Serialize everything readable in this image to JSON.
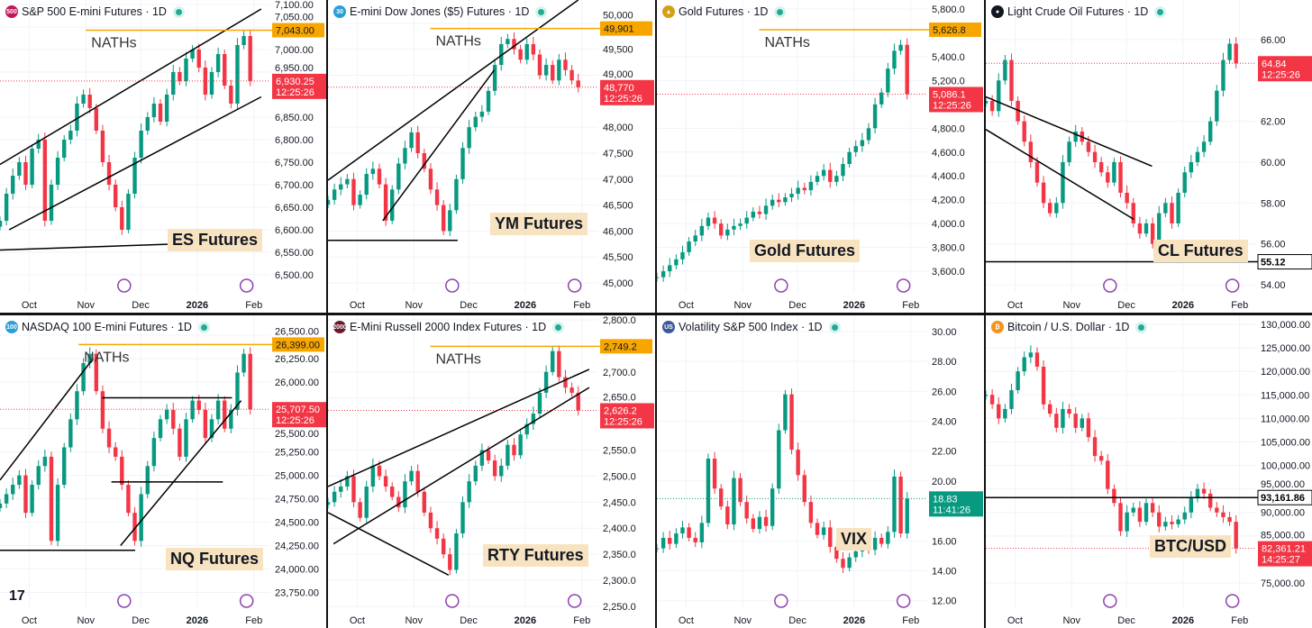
{
  "colors": {
    "up": "#089981",
    "down": "#f23645",
    "nath": "#f7a600",
    "grid": "#f0f3fa",
    "text": "#131722"
  },
  "chart_data": [
    {
      "id": "es",
      "type": "candlestick",
      "title": "S&P 500 E-mini Futures · 1D",
      "logo_text": "500",
      "logo_color": "#c2185b",
      "annotation": "ES Futures",
      "nath_text": "NATHs",
      "nath_price": 7043,
      "nath_label": "7,043.00",
      "nath_from": "2025-11-01",
      "last_price": 6930.25,
      "last_label": "6,930.25",
      "countdown": "12:25:26",
      "last_dir": "down",
      "ylim": [
        6460,
        7110
      ],
      "xlim": [
        "2025-09-15",
        "2026-02-10"
      ],
      "first": "2025-09-15",
      "last": "2026-01-30",
      "xticks": [
        {
          "label": "Oct",
          "date": "2025-10-01"
        },
        {
          "label": "Nov",
          "date": "2025-11-01"
        },
        {
          "label": "Dec",
          "date": "2025-12-01"
        },
        {
          "label": "2026",
          "date": "2026-01-01"
        },
        {
          "label": "Feb",
          "date": "2026-02-01"
        }
      ],
      "yticks": [
        "7,100.00",
        "7,050.00",
        "7,000.00",
        "6,950.00",
        "6,850.00",
        "6,800.00",
        "6,750.00",
        "6,700.00",
        "6,650.00",
        "6,600.00",
        "6,550.00",
        "6,500.00"
      ],
      "closes": [
        6620,
        6680,
        6720,
        6750,
        6700,
        6780,
        6800,
        6620,
        6700,
        6760,
        6800,
        6820,
        6880,
        6900,
        6870,
        6820,
        6750,
        6700,
        6650,
        6600,
        6680,
        6760,
        6820,
        6850,
        6880,
        6840,
        6900,
        6950,
        6930,
        6980,
        7000,
        6960,
        6900,
        6950,
        6990,
        6920,
        6880,
        7010,
        7030,
        6930.25
      ],
      "trendlines": [
        {
          "from": [
            "2025-09-15",
            6745
          ],
          "to": [
            "2026-02-05",
            7090
          ]
        },
        {
          "from": [
            "2025-09-20",
            6600
          ],
          "to": [
            "2026-02-05",
            6895
          ]
        },
        {
          "from": [
            "2025-09-15",
            6555
          ],
          "to": [
            "2026-02-05",
            6575
          ]
        }
      ]
    },
    {
      "id": "ym",
      "type": "candlestick",
      "title": "E-mini Dow Jones ($5) Futures · 1D",
      "logo_text": "30",
      "logo_color": "#2a9fd6",
      "annotation": "YM Futures",
      "nath_text": "NATHs",
      "nath_price": 49901,
      "nath_label": "49,901",
      "nath_from": "2025-11-10",
      "last_price": 48770,
      "last_label": "48,770",
      "countdown": "12:25:26",
      "last_dir": "down",
      "ylim": [
        44810,
        50450
      ],
      "xlim": [
        "2025-09-15",
        "2026-02-10"
      ],
      "first": "2025-09-15",
      "last": "2026-01-30",
      "xticks": [
        {
          "label": "Oct",
          "date": "2025-10-01"
        },
        {
          "label": "Nov",
          "date": "2025-11-01"
        },
        {
          "label": "Dec",
          "date": "2025-12-01"
        },
        {
          "label": "2026",
          "date": "2026-01-01"
        },
        {
          "label": "Feb",
          "date": "2026-02-01"
        }
      ],
      "yticks": [
        "50,000",
        "49,500",
        "49,000",
        "48,000",
        "47,500",
        "47,000",
        "46,500",
        "46,000",
        "45,500",
        "45,000"
      ],
      "closes": [
        46600,
        46800,
        46900,
        47000,
        46500,
        46700,
        47100,
        47200,
        46900,
        46200,
        46800,
        47300,
        47600,
        47900,
        47500,
        47200,
        46800,
        46500,
        46000,
        46400,
        47000,
        47600,
        48000,
        48200,
        48300,
        48700,
        49200,
        49600,
        49700,
        49500,
        49300,
        49600,
        49400,
        49000,
        49200,
        48900,
        49300,
        49100,
        48900,
        48770
      ],
      "trendlines": [
        {
          "from": [
            "2025-09-15",
            46980
          ],
          "to": [
            "2026-01-30",
            50450
          ]
        },
        {
          "from": [
            "2025-10-15",
            46200
          ],
          "to": [
            "2025-12-15",
            49100
          ]
        },
        {
          "from": [
            "2025-09-15",
            45820
          ],
          "to": [
            "2025-11-25",
            45820
          ]
        }
      ]
    },
    {
      "id": "gc",
      "type": "candlestick",
      "title": "Gold Futures · 1D",
      "logo_text": "▲",
      "logo_color": "#d4a017",
      "annotation": "Gold Futures",
      "nath_text": "NATHs",
      "nath_price": 5626.8,
      "nath_label": "5,626.8",
      "nath_from": "2025-11-10",
      "last_price": 5086.1,
      "last_label": "5,086.1",
      "countdown": "12:25:26",
      "last_dir": "down",
      "ylim": [
        3419,
        5876
      ],
      "xlim": [
        "2025-09-15",
        "2026-02-10"
      ],
      "first": "2025-09-15",
      "last": "2026-01-30",
      "xticks": [
        {
          "label": "Oct",
          "date": "2025-10-01"
        },
        {
          "label": "Nov",
          "date": "2025-11-01"
        },
        {
          "label": "Dec",
          "date": "2025-12-01"
        },
        {
          "label": "2026",
          "date": "2026-01-01"
        },
        {
          "label": "Feb",
          "date": "2026-02-01"
        }
      ],
      "yticks": [
        "5,800.0",
        "5,400.0",
        "5,200.0",
        "4,800.0",
        "4,600.0",
        "4,400.0",
        "4,200.0",
        "4,000.0",
        "3,800.0",
        "3,600.0"
      ],
      "closes": [
        3550,
        3600,
        3650,
        3700,
        3760,
        3850,
        3900,
        3980,
        4050,
        4000,
        3900,
        3950,
        3980,
        4000,
        4050,
        4100,
        4080,
        4150,
        4200,
        4180,
        4220,
        4250,
        4300,
        4280,
        4350,
        4400,
        4450,
        4350,
        4400,
        4500,
        4600,
        4650,
        4700,
        4800,
        5000,
        5100,
        5300,
        5450,
        5500,
        5086.1
      ],
      "trendlines": []
    },
    {
      "id": "cl",
      "type": "candlestick",
      "title": "Light Crude Oil Futures · 1D",
      "logo_text": "●",
      "logo_color": "#131722",
      "annotation": "CL Futures",
      "support_label": "55.12",
      "support_price": 55.12,
      "last_price": 64.84,
      "last_label": "64.84",
      "countdown": "12:25:26",
      "last_dir": "down",
      "ylim": [
        53.6,
        67.94
      ],
      "xlim": [
        "2025-09-15",
        "2026-02-10"
      ],
      "first": "2025-09-15",
      "last": "2026-01-30",
      "xticks": [
        {
          "label": "Oct",
          "date": "2025-10-01"
        },
        {
          "label": "Nov",
          "date": "2025-11-01"
        },
        {
          "label": "Dec",
          "date": "2025-12-01"
        },
        {
          "label": "2026",
          "date": "2026-01-01"
        },
        {
          "label": "Feb",
          "date": "2026-02-01"
        }
      ],
      "yticks": [
        "66.00",
        "62.00",
        "60.00",
        "58.00",
        "56.00",
        "54.00"
      ],
      "closes": [
        63,
        62.5,
        64,
        65,
        63,
        62,
        61,
        60,
        59,
        58,
        57.5,
        58,
        60,
        61,
        61.5,
        61,
        60.5,
        60,
        59.5,
        59,
        60,
        58.5,
        58,
        57,
        56.5,
        57,
        56,
        57.5,
        58,
        57,
        58.5,
        59.5,
        60,
        60.5,
        61,
        62,
        63.5,
        65,
        65.8,
        64.84
      ],
      "trendlines": [
        {
          "from": [
            "2025-09-15",
            63.2
          ],
          "to": [
            "2025-12-15",
            59.8
          ]
        },
        {
          "from": [
            "2025-09-15",
            61.6
          ],
          "to": [
            "2025-12-05",
            57.2
          ]
        }
      ]
    },
    {
      "id": "nq",
      "type": "candlestick",
      "title": "NASDAQ 100 E-mini Futures · 1D",
      "logo_text": "100",
      "logo_color": "#2a9fd6",
      "annotation": "NQ Futures",
      "nath_text": "NATHs",
      "nath_price": 26399,
      "nath_label": "26,399.00",
      "nath_from": "2025-10-28",
      "last_price": 25707.5,
      "last_label": "25,707.50",
      "countdown": "12:25:26",
      "last_dir": "down",
      "ylim": [
        23581,
        26711
      ],
      "xlim": [
        "2025-09-15",
        "2026-02-10"
      ],
      "first": "2025-09-15",
      "last": "2026-01-30",
      "xticks": [
        {
          "label": "Oct",
          "date": "2025-10-01"
        },
        {
          "label": "Nov",
          "date": "2025-11-01"
        },
        {
          "label": "Dec",
          "date": "2025-12-01"
        },
        {
          "label": "2026",
          "date": "2026-01-01"
        },
        {
          "label": "Feb",
          "date": "2026-02-01"
        }
      ],
      "yticks": [
        "26,500.00",
        "26,250.00",
        "26,000.00",
        "25,500.00",
        "25,250.00",
        "25,000.00",
        "24,750.00",
        "24,500.00",
        "24,250.00",
        "24,000.00",
        "23,750.00"
      ],
      "closes": [
        24700,
        24800,
        24900,
        25000,
        24600,
        24900,
        25100,
        25200,
        24300,
        24900,
        25300,
        25600,
        25900,
        26200,
        26300,
        25900,
        25500,
        25300,
        25200,
        24900,
        24600,
        24300,
        24800,
        25100,
        25400,
        25600,
        25700,
        25500,
        25200,
        25600,
        25800,
        25700,
        25400,
        25600,
        25800,
        25500,
        25700,
        26100,
        26300,
        25707.5
      ],
      "trendlines": [
        {
          "from": [
            "2025-09-15",
            24950
          ],
          "to": [
            "2025-11-05",
            26250
          ]
        },
        {
          "from": [
            "2025-11-10",
            25830
          ],
          "to": [
            "2026-01-20",
            25830
          ]
        },
        {
          "from": [
            "2025-11-20",
            24250
          ],
          "to": [
            "2026-01-25",
            25800
          ]
        },
        {
          "from": [
            "2025-09-15",
            24200
          ],
          "to": [
            "2025-11-28",
            24200
          ]
        },
        {
          "from": [
            "2025-11-15",
            24930
          ],
          "to": [
            "2026-01-15",
            24930
          ]
        }
      ]
    },
    {
      "id": "rty",
      "type": "candlestick",
      "title": "E-Mini Russell 2000 Index Futures · 1D",
      "logo_text": "2000",
      "logo_color": "#6a1b2a",
      "annotation": "RTY Futures",
      "nath_text": "NATHs",
      "nath_price": 2749.2,
      "nath_label": "2,749.2",
      "nath_from": "2025-11-10",
      "last_price": 2626.2,
      "last_label": "2,626.2",
      "countdown": "12:25:26",
      "last_dir": "down",
      "ylim": [
        2246.5,
        2808.6
      ],
      "xlim": [
        "2025-09-15",
        "2026-02-10"
      ],
      "first": "2025-09-15",
      "last": "2026-01-30",
      "xticks": [
        {
          "label": "Oct",
          "date": "2025-10-01"
        },
        {
          "label": "Nov",
          "date": "2025-11-01"
        },
        {
          "label": "Dec",
          "date": "2025-12-01"
        },
        {
          "label": "2026",
          "date": "2026-01-01"
        },
        {
          "label": "Feb",
          "date": "2026-02-01"
        }
      ],
      "yticks": [
        "2,800.0",
        "2,700.0",
        "2,650.0",
        "2,550.0",
        "2,500.0",
        "2,450.0",
        "2,400.0",
        "2,350.0",
        "2,300.0",
        "2,250.0"
      ],
      "closes": [
        2450,
        2470,
        2480,
        2500,
        2450,
        2420,
        2480,
        2520,
        2500,
        2480,
        2460,
        2440,
        2490,
        2510,
        2470,
        2430,
        2400,
        2380,
        2350,
        2320,
        2390,
        2450,
        2490,
        2520,
        2550,
        2530,
        2500,
        2520,
        2560,
        2540,
        2580,
        2600,
        2620,
        2660,
        2700,
        2740,
        2690,
        2670,
        2660,
        2626.2
      ],
      "trendlines": [
        {
          "from": [
            "2025-09-15",
            2480
          ],
          "to": [
            "2026-02-05",
            2705
          ]
        },
        {
          "from": [
            "2025-09-18",
            2370
          ],
          "to": [
            "2026-02-05",
            2670
          ]
        },
        {
          "from": [
            "2025-09-15",
            2430
          ],
          "to": [
            "2025-11-20",
            2310
          ]
        }
      ]
    },
    {
      "id": "vix",
      "type": "candlestick",
      "title": "Volatility S&P 500 Index · 1D",
      "logo_text": "US",
      "logo_color": "#3c5a99",
      "annotation": "VIX",
      "last_price": 18.83,
      "last_label": "18.83",
      "countdown": "11:41:26",
      "last_dir": "up",
      "ylim": [
        11.5,
        31.08
      ],
      "xlim": [
        "2025-09-15",
        "2026-02-10"
      ],
      "first": "2025-09-15",
      "last": "2026-01-30",
      "xticks": [
        {
          "label": "Oct",
          "date": "2025-10-01"
        },
        {
          "label": "Nov",
          "date": "2025-11-01"
        },
        {
          "label": "Dec",
          "date": "2025-12-01"
        },
        {
          "label": "2026",
          "date": "2026-01-01"
        },
        {
          "label": "Feb",
          "date": "2026-02-01"
        }
      ],
      "yticks": [
        "30.00",
        "28.00",
        "26.00",
        "24.00",
        "22.00",
        "20.00",
        "16.00",
        "14.00",
        "12.00"
      ],
      "closes": [
        15.5,
        16.2,
        15.8,
        16.5,
        16.9,
        16.2,
        15.9,
        17.2,
        21.5,
        19.5,
        18.3,
        17.1,
        20.2,
        18.6,
        17.5,
        16.8,
        17.6,
        17.0,
        19.5,
        23.4,
        25.8,
        22.1,
        20.4,
        18.6,
        17.2,
        16.4,
        16.9,
        15.6,
        14.8,
        14.2,
        14.9,
        15.3,
        15.9,
        15.4,
        16.2,
        15.8,
        16.6,
        20.3,
        16.5,
        18.83
      ],
      "trendlines": []
    },
    {
      "id": "btc",
      "type": "candlestick",
      "title": "Bitcoin / U.S. Dollar · 1D",
      "logo_text": "₿",
      "logo_color": "#f7931a",
      "annotation": "BTC/USD",
      "support_label": "93,161.86",
      "support_price": 93161.86,
      "last_price": 82361.21,
      "last_label": "82,361.21",
      "countdown": "14:25:27",
      "last_dir": "down",
      "ylim": [
        69635,
        131916
      ],
      "xlim": [
        "2025-09-15",
        "2026-02-10"
      ],
      "first": "2025-09-15",
      "last": "2026-01-30",
      "xticks": [
        {
          "label": "Oct",
          "date": "2025-10-01"
        },
        {
          "label": "Nov",
          "date": "2025-11-01"
        },
        {
          "label": "Dec",
          "date": "2025-12-01"
        },
        {
          "label": "2026",
          "date": "2026-01-01"
        },
        {
          "label": "Feb",
          "date": "2026-02-01"
        }
      ],
      "yticks": [
        "130,000.00",
        "125,000.00",
        "120,000.00",
        "115,000.00",
        "110,000.00",
        "105,000.00",
        "100,000.00",
        "95,000.00",
        "90,000.00",
        "85,000.00",
        "75,000.00"
      ],
      "closes": [
        115000,
        113000,
        110000,
        112000,
        116000,
        120000,
        123000,
        124000,
        121000,
        113000,
        111000,
        108000,
        112000,
        111000,
        108000,
        110000,
        106000,
        102000,
        101000,
        95000,
        92000,
        86000,
        90000,
        91000,
        88000,
        92000,
        90000,
        87000,
        88000,
        87500,
        88500,
        90000,
        93000,
        95000,
        94000,
        91000,
        90000,
        89000,
        88000,
        82361.21
      ],
      "trendlines": []
    }
  ]
}
